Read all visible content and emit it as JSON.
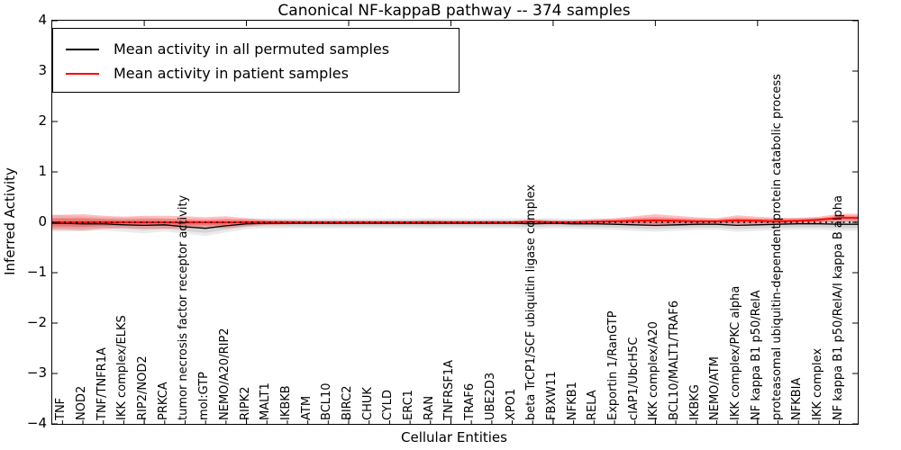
{
  "title": "Canonical NF-kappaB pathway -- 374 samples",
  "legend": {
    "entries": [
      {
        "label": "Mean activity in all permuted samples",
        "color": "#000000"
      },
      {
        "label": "Mean activity in patient samples",
        "color": "#ff0000"
      }
    ]
  },
  "chart_data": {
    "type": "line",
    "title": "Canonical NF-kappaB pathway -- 374 samples",
    "xlabel": "Cellular Entities",
    "ylabel": "Inferred Activity",
    "ylim": [
      -4,
      4
    ],
    "ytick_values": [
      4,
      3,
      2,
      1,
      0,
      -1,
      -2,
      -3,
      -4
    ],
    "ytick_labels": [
      "4",
      "3",
      "2",
      "1",
      "0",
      "−1",
      "−2",
      "−3",
      "−4"
    ],
    "grid": false,
    "legend_position": "upper left",
    "zero_line": {
      "style": "dotted",
      "color": "#000000",
      "y": 0
    },
    "categories": [
      "TNF",
      "NOD2",
      "TNF/TNFR1A",
      "IKK complex/ELKS",
      "RIP2/NOD2",
      "PRKCA",
      "tumor necrosis factor receptor activity",
      "mol:GTP",
      "NEMO/A20/RIP2",
      "RIPK2",
      "MALT1",
      "IKBKB",
      "ATM",
      "BCL10",
      "BIRC2",
      "CHUK",
      "CYLD",
      "ERC1",
      "RAN",
      "TNFRSF1A",
      "TRAF6",
      "UBE2D3",
      "XPO1",
      "beta TrCP1/SCF ubiquitin ligase complex",
      "FBXW11",
      "NFKB1",
      "RELA",
      "Exportin 1/RanGTP",
      "cIAP1/UbcH5C",
      "IKK complex/A20",
      "BCL10/MALT1/TRAF6",
      "IKBKG",
      "NEMO/ATM",
      "IKK complex/PKC alpha",
      "NF kappa B1 p50/RelA",
      "proteasomal ubiquitin-dependent protein catabolic process",
      "NFKBIA",
      "IKK complex",
      "NF kappa B1 p50/RelA/I kappa B alpha"
    ],
    "series": [
      {
        "name": "Mean activity in all permuted samples",
        "color": "#000000",
        "band_color": "#000000",
        "values": [
          -0.02,
          -0.03,
          -0.03,
          -0.05,
          -0.06,
          -0.05,
          -0.09,
          -0.12,
          -0.07,
          -0.03,
          -0.02,
          -0.02,
          -0.02,
          -0.02,
          -0.02,
          -0.02,
          -0.02,
          -0.02,
          -0.02,
          -0.02,
          -0.02,
          -0.02,
          -0.02,
          -0.03,
          -0.02,
          -0.03,
          -0.03,
          -0.04,
          -0.05,
          -0.06,
          -0.05,
          -0.04,
          -0.04,
          -0.06,
          -0.05,
          -0.04,
          -0.03,
          -0.03,
          -0.04
        ],
        "band_halfwidth": [
          0.16,
          0.15,
          0.13,
          0.14,
          0.16,
          0.13,
          0.14,
          0.15,
          0.13,
          0.11,
          0.1,
          0.1,
          0.1,
          0.1,
          0.1,
          0.1,
          0.1,
          0.1,
          0.11,
          0.1,
          0.1,
          0.1,
          0.1,
          0.11,
          0.1,
          0.1,
          0.11,
          0.11,
          0.12,
          0.13,
          0.12,
          0.11,
          0.11,
          0.13,
          0.12,
          0.12,
          0.12,
          0.12,
          0.13
        ]
      },
      {
        "name": "Mean activity in patient samples",
        "color": "#ff0000",
        "band_color": "#ff0000",
        "values": [
          0.0,
          0.0,
          0.0,
          0.0,
          0.0,
          0.0,
          0.0,
          0.0,
          0.0,
          0.0,
          0.0,
          0.0,
          0.0,
          0.0,
          0.0,
          0.0,
          0.0,
          0.0,
          0.0,
          0.0,
          0.0,
          0.0,
          0.0,
          0.01,
          0.0,
          0.0,
          0.01,
          0.02,
          0.03,
          0.04,
          0.03,
          0.02,
          0.02,
          0.04,
          0.03,
          0.02,
          0.03,
          0.05,
          0.09
        ],
        "band_halfwidth": [
          0.15,
          0.16,
          0.13,
          0.11,
          0.13,
          0.13,
          0.12,
          0.1,
          0.12,
          0.08,
          0.05,
          0.04,
          0.03,
          0.03,
          0.03,
          0.03,
          0.03,
          0.03,
          0.04,
          0.03,
          0.03,
          0.03,
          0.03,
          0.05,
          0.04,
          0.04,
          0.05,
          0.06,
          0.09,
          0.12,
          0.1,
          0.08,
          0.06,
          0.1,
          0.08,
          0.07,
          0.06,
          0.06,
          0.08
        ]
      }
    ],
    "top_axis_ticks_at": [
      5,
      10,
      15,
      20,
      25,
      30,
      35
    ]
  }
}
